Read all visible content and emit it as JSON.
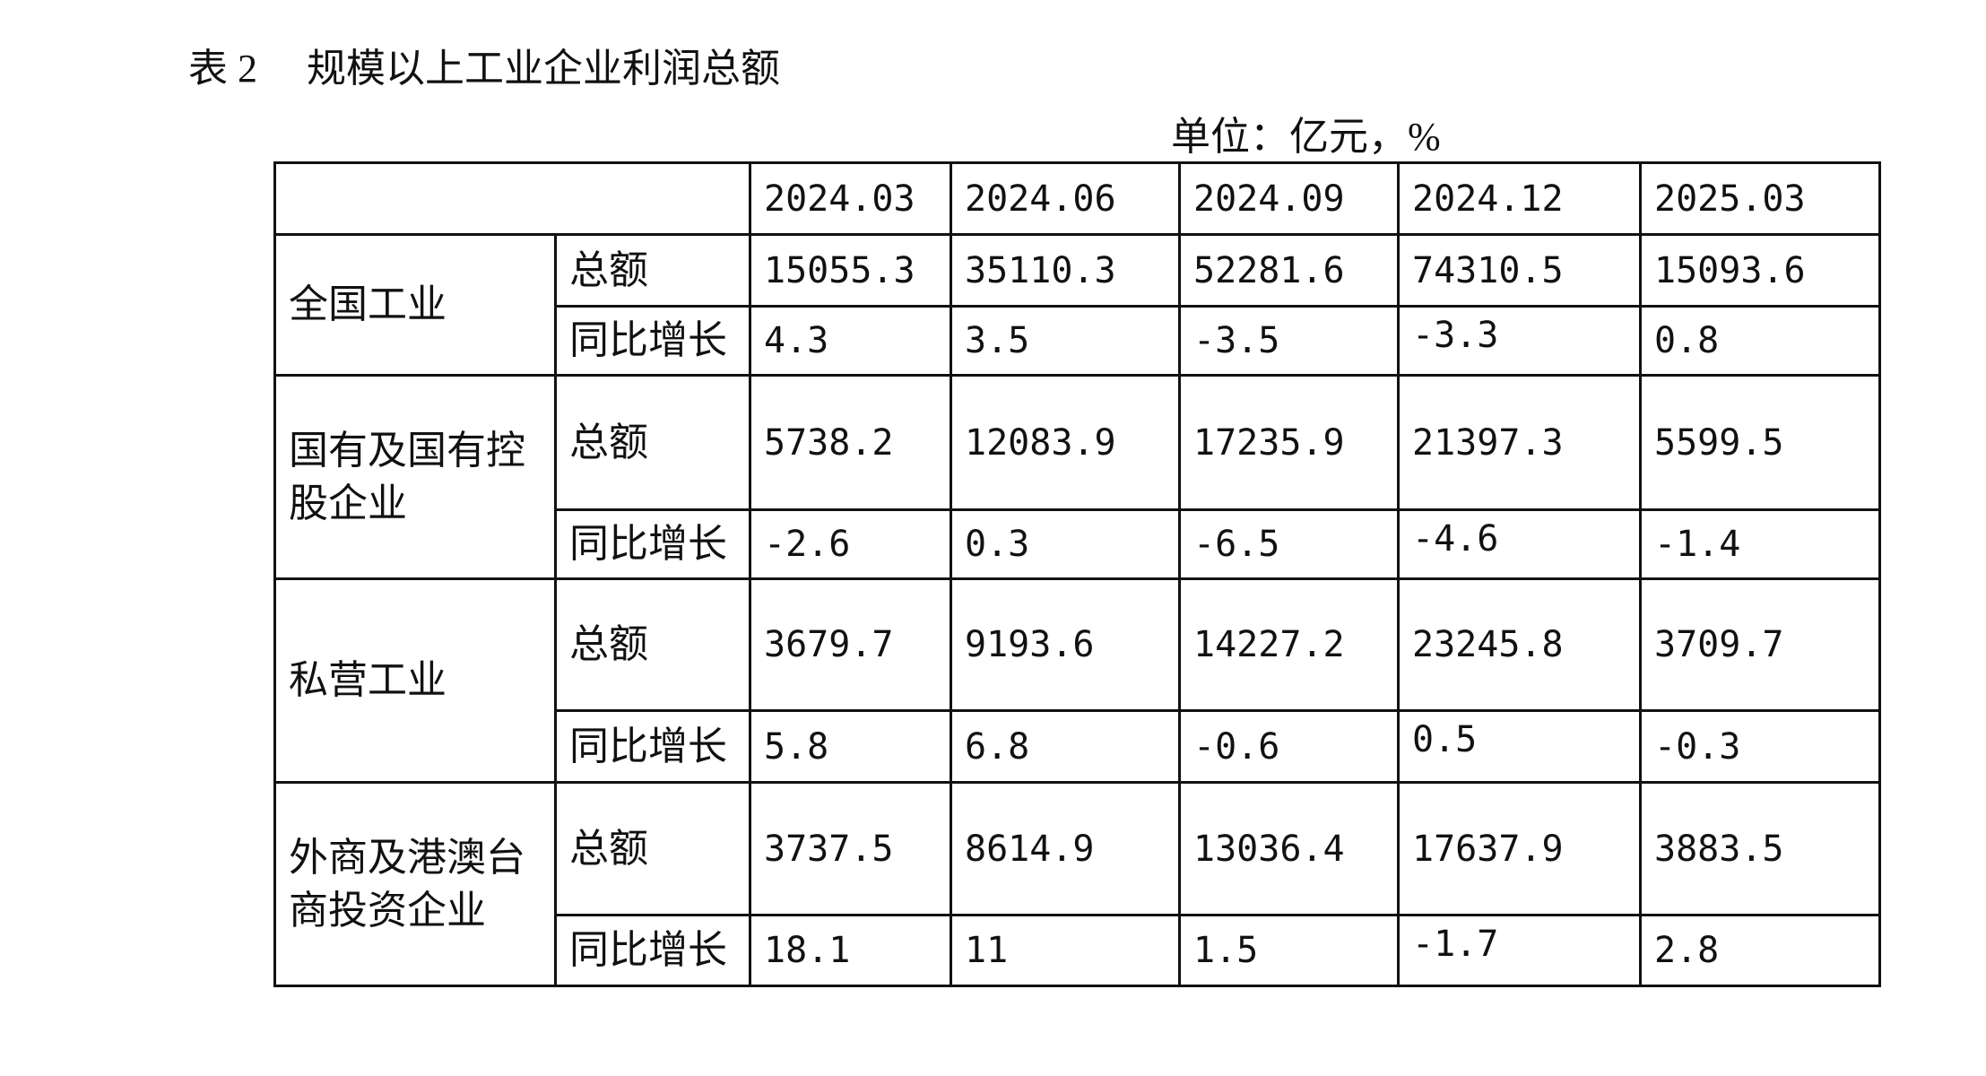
{
  "header": {
    "label": "表 2",
    "title": "规模以上工业企业利润总额",
    "unit": "单位：亿元，%"
  },
  "table": {
    "columns": [
      "2024.03",
      "2024.06",
      "2024.09",
      "2024.12",
      "2025.03"
    ],
    "groups": [
      {
        "name": "全国工业",
        "rows": [
          {
            "label": "总额",
            "values": [
              "15055.3",
              "35110.3",
              "52281.6",
              "74310.5",
              "15093.6"
            ]
          },
          {
            "label": "同比增长",
            "values": [
              "4.3",
              "3.5",
              "-3.5",
              "-3.3",
              "0.8"
            ]
          }
        ]
      },
      {
        "name": "国有及国有控股企业",
        "rows": [
          {
            "label": "总额",
            "values": [
              "5738.2",
              "12083.9",
              "17235.9",
              "21397.3",
              "5599.5"
            ]
          },
          {
            "label": "同比增长",
            "values": [
              "-2.6",
              "0.3",
              "-6.5",
              "-4.6",
              "-1.4"
            ]
          }
        ]
      },
      {
        "name": "私营工业",
        "rows": [
          {
            "label": "总额",
            "values": [
              "3679.7",
              "9193.6",
              "14227.2",
              "23245.8",
              "3709.7"
            ]
          },
          {
            "label": "同比增长",
            "values": [
              "5.8",
              "6.8",
              "-0.6",
              "0.5",
              "-0.3"
            ]
          }
        ]
      },
      {
        "name": "外商及港澳台商投资企业",
        "rows": [
          {
            "label": "总额",
            "values": [
              "3737.5",
              "8614.9",
              "13036.4",
              "17637.9",
              "3883.5"
            ]
          },
          {
            "label": "同比增长",
            "values": [
              "18.1",
              "11",
              "1.5",
              "-1.7",
              "2.8"
            ]
          }
        ]
      }
    ]
  }
}
